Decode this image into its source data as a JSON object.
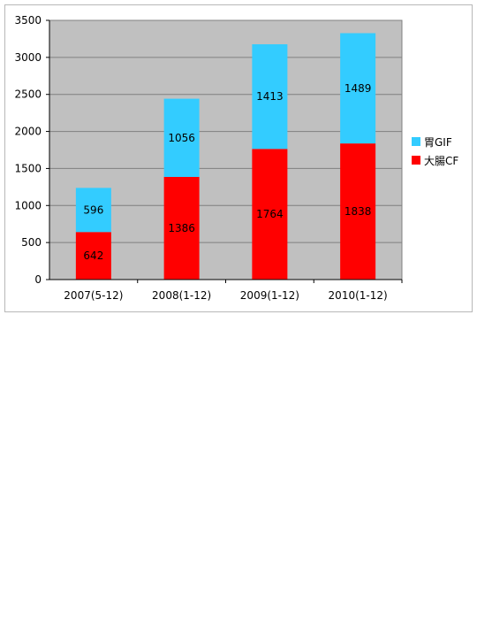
{
  "chart_data": {
    "type": "bar",
    "stacked": true,
    "categories": [
      "2007(5-12)",
      "2008(1-12)",
      "2009(1-12)",
      "2010(1-12)"
    ],
    "series": [
      {
        "name": "大腸CF",
        "values": [
          642,
          1386,
          1764,
          1838
        ],
        "color": "#ff0000"
      },
      {
        "name": "胃GIF",
        "values": [
          596,
          1056,
          1413,
          1489
        ],
        "color": "#33ccff"
      }
    ],
    "ylim": [
      0,
      3500
    ],
    "yticks": [
      0,
      500,
      1000,
      1500,
      2000,
      2500,
      3000,
      3500
    ],
    "ytick_labels": [
      "0",
      "500",
      "1000",
      "1500",
      "2000",
      "2500",
      "3000",
      "3500"
    ],
    "grid": true,
    "plot_background": "#c0c0c0",
    "legend_position": "right",
    "title": "",
    "xlabel": "",
    "ylabel": ""
  }
}
